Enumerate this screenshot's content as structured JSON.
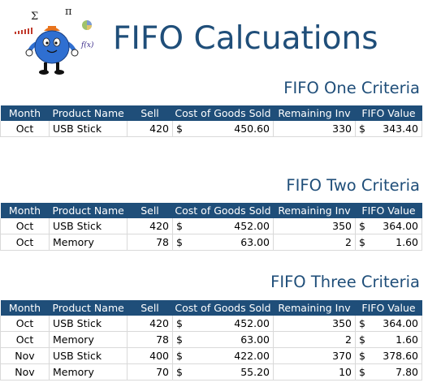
{
  "header": {
    "title": "FIFO Calcuations",
    "logo": {
      "sigma": "Σ",
      "pi": "π",
      "fx": "f(x)"
    }
  },
  "colors": {
    "accent": "#1f4e79",
    "header_text": "#ffffff",
    "grid": "#d9d9d9"
  },
  "columns": [
    "Month",
    "Product Name",
    "Sell",
    "Cost of Goods Sold",
    "Remaining Inv",
    "FIFO Value"
  ],
  "sections": [
    {
      "title": "FIFO One Criteria",
      "rows": [
        {
          "month": "Oct",
          "product": "USB Stick",
          "sell": "420",
          "cogs_sym": "$",
          "cogs": "450.60",
          "remaining": "330",
          "fifo_sym": "$",
          "fifo": "343.40"
        }
      ]
    },
    {
      "title": "FIFO Two Criteria",
      "rows": [
        {
          "month": "Oct",
          "product": "USB Stick",
          "sell": "420",
          "cogs_sym": "$",
          "cogs": "452.00",
          "remaining": "350",
          "fifo_sym": "$",
          "fifo": "364.00"
        },
        {
          "month": "Oct",
          "product": "Memory",
          "sell": "78",
          "cogs_sym": "$",
          "cogs": "63.00",
          "remaining": "2",
          "fifo_sym": "$",
          "fifo": "1.60"
        }
      ]
    },
    {
      "title": "FIFO Three Criteria",
      "rows": [
        {
          "month": "Oct",
          "product": "USB Stick",
          "sell": "420",
          "cogs_sym": "$",
          "cogs": "452.00",
          "remaining": "350",
          "fifo_sym": "$",
          "fifo": "364.00"
        },
        {
          "month": "Oct",
          "product": "Memory",
          "sell": "78",
          "cogs_sym": "$",
          "cogs": "63.00",
          "remaining": "2",
          "fifo_sym": "$",
          "fifo": "1.60"
        },
        {
          "month": "Nov",
          "product": "USB Stick",
          "sell": "400",
          "cogs_sym": "$",
          "cogs": "422.00",
          "remaining": "370",
          "fifo_sym": "$",
          "fifo": "378.60"
        },
        {
          "month": "Nov",
          "product": "Memory",
          "sell": "70",
          "cogs_sym": "$",
          "cogs": "55.20",
          "remaining": "10",
          "fifo_sym": "$",
          "fifo": "7.80"
        }
      ]
    }
  ]
}
